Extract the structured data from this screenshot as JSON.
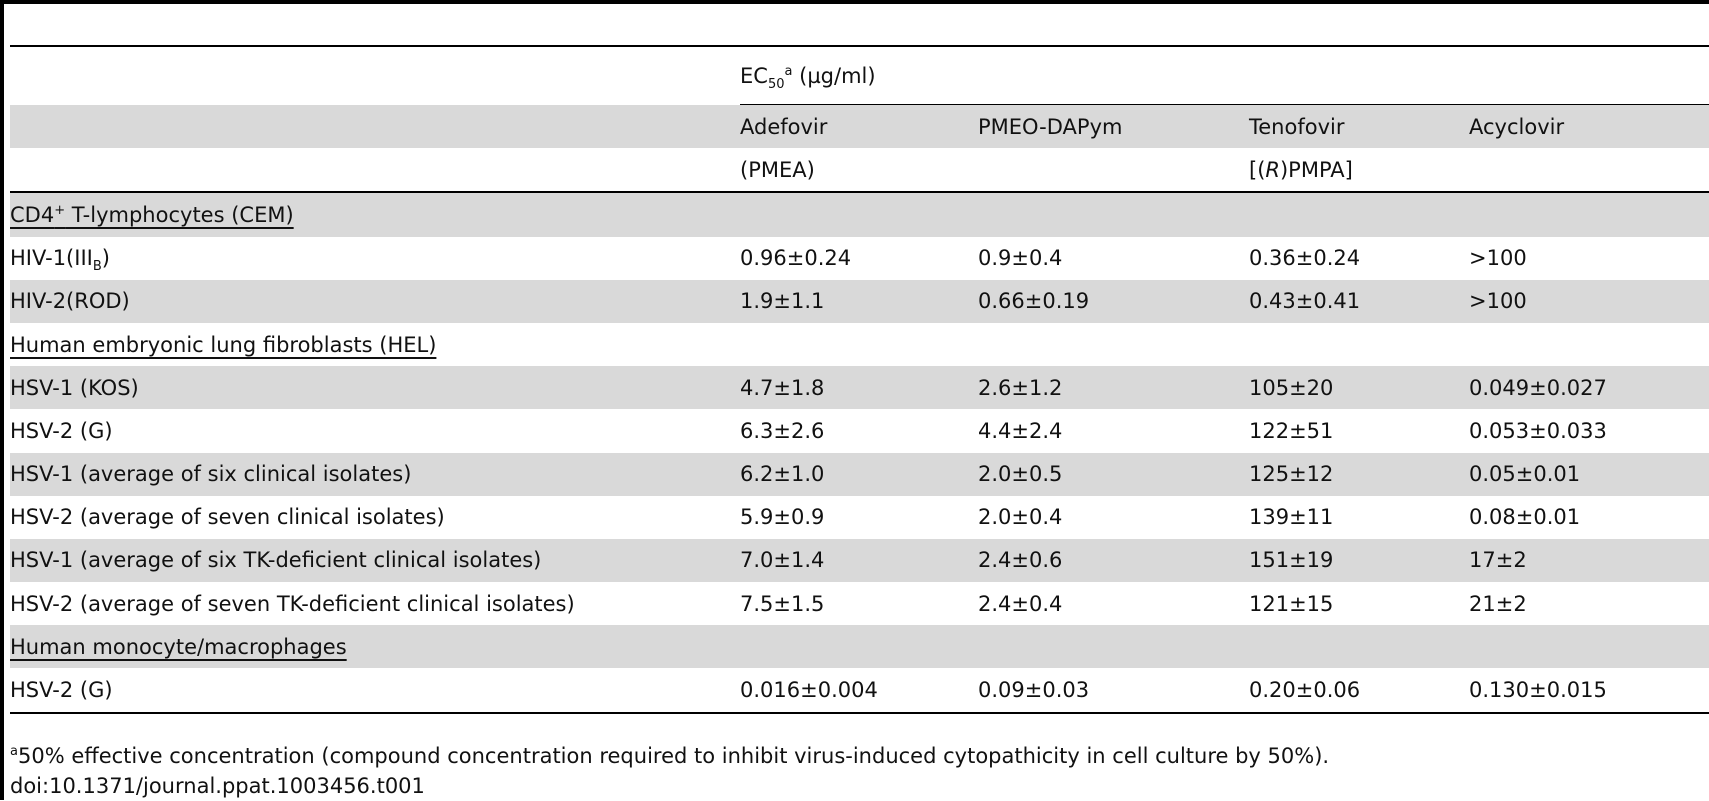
{
  "header": {
    "ec_label": "EC",
    "ec_sub": "50",
    "ec_sup": "a",
    "ec_unit": " (µg/ml)",
    "drugs": [
      {
        "name": "Adefovir",
        "abbr": "(PMEA)"
      },
      {
        "name": "PMEO-DAPym",
        "abbr": ""
      },
      {
        "name": "Tenofovir",
        "abbr_pre": "[(",
        "abbr_italic": "R",
        "abbr_post": ")PMPA]"
      },
      {
        "name": "Acyclovir",
        "abbr": ""
      }
    ]
  },
  "sections": [
    {
      "title": "CD4",
      "title_sup": "+",
      "title_rest": " T-lymphocytes (CEM)",
      "rows": [
        {
          "label": "HIV-1(III",
          "label_sub": "B",
          "label_post": ")",
          "values": [
            "0.96±0.24",
            "0.9±0.4",
            "0.36±0.24",
            ">100"
          ]
        },
        {
          "label": "HIV-2(ROD)",
          "values": [
            "1.9±1.1",
            "0.66±0.19",
            "0.43±0.41",
            ">100"
          ]
        }
      ]
    },
    {
      "title": "Human embryonic lung fibroblasts (HEL)",
      "rows": [
        {
          "label": "HSV-1 (KOS)",
          "values": [
            "4.7±1.8",
            "2.6±1.2",
            "105±20",
            "0.049±0.027"
          ]
        },
        {
          "label": "HSV-2 (G)",
          "values": [
            "6.3±2.6",
            "4.4±2.4",
            "122±51",
            "0.053±0.033"
          ]
        },
        {
          "label": "HSV-1 (average of six clinical isolates)",
          "values": [
            "6.2±1.0",
            "2.0±0.5",
            "125±12",
            "0.05±0.01"
          ]
        },
        {
          "label": "HSV-2 (average of seven clinical isolates)",
          "values": [
            "5.9±0.9",
            "2.0±0.4",
            "139±11",
            "0.08±0.01"
          ]
        },
        {
          "label": "HSV-1 (average of six TK-deficient clinical isolates)",
          "values": [
            "7.0±1.4",
            "2.4±0.6",
            "151±19",
            "17±2"
          ]
        },
        {
          "label": "HSV-2 (average of seven TK-deficient clinical isolates)",
          "values": [
            "7.5±1.5",
            "2.4±0.4",
            "121±15",
            "21±2"
          ]
        }
      ]
    },
    {
      "title": "Human monocyte/macrophages",
      "rows": [
        {
          "label": "HSV-2 (G)",
          "values": [
            "0.016±0.004",
            "0.09±0.03",
            "0.20±0.06",
            "0.130±0.015"
          ]
        }
      ]
    }
  ],
  "footnote": {
    "sup": "a",
    "text": "50% effective concentration (compound concentration required to inhibit virus-induced cytopathicity in cell culture by 50%).",
    "doi": "doi:10.1371/journal.ppat.1003456.t001"
  }
}
